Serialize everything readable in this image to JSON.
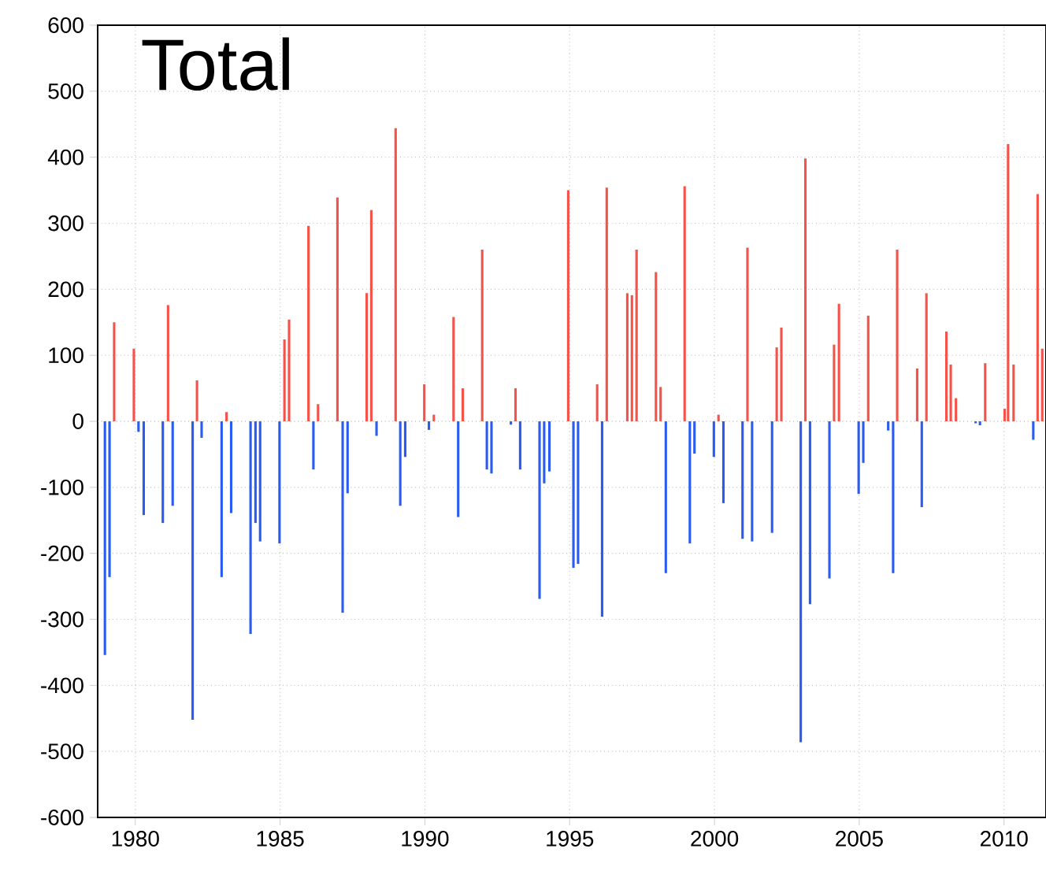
{
  "chart_data": {
    "type": "bar",
    "title": "Total",
    "x": [
      1978.95,
      1979.11,
      1979.27,
      1979.95,
      1980.11,
      1980.29,
      1980.95,
      1981.13,
      1981.29,
      1981.98,
      1982.13,
      1982.29,
      1982.98,
      1983.15,
      1983.31,
      1983.98,
      1984.15,
      1984.31,
      1984.98,
      1985.15,
      1985.31,
      1985.98,
      1986.15,
      1986.31,
      1986.98,
      1987.16,
      1987.33,
      1987.99,
      1988.15,
      1988.33,
      1988.99,
      1989.15,
      1989.32,
      1989.98,
      1990.14,
      1990.31,
      1990.99,
      1991.15,
      1991.31,
      1991.98,
      1992.14,
      1992.3,
      1992.97,
      1993.13,
      1993.29,
      1993.96,
      1994.12,
      1994.3,
      1994.95,
      1995.13,
      1995.29,
      1995.95,
      1996.12,
      1996.28,
      1996.99,
      1997.15,
      1997.31,
      1997.98,
      1998.14,
      1998.32,
      1998.97,
      1999.15,
      1999.31,
      1999.98,
      2000.14,
      2000.31,
      2000.97,
      2001.14,
      2001.3,
      2001.99,
      2002.15,
      2002.31,
      2002.98,
      2003.14,
      2003.3,
      2003.97,
      2004.13,
      2004.3,
      2004.98,
      2005.14,
      2005.31,
      2006.0,
      2006.17,
      2006.31,
      2007.0,
      2007.16,
      2007.32,
      2008.01,
      2008.16,
      2008.34,
      2009.02,
      2009.17,
      2009.35,
      2010.02,
      2010.14,
      2010.33,
      2011.01,
      2011.16,
      2011.32
    ],
    "values": [
      -354,
      -236,
      150,
      110,
      -16,
      -142,
      -154,
      176,
      -128,
      -452,
      62,
      -25,
      -236,
      14,
      -139,
      -322,
      -154,
      -182,
      -185,
      124,
      154,
      296,
      -73,
      26,
      339,
      -290,
      -109,
      194,
      320,
      -22,
      444,
      -128,
      -54,
      56,
      -13,
      10,
      158,
      -145,
      50,
      260,
      -73,
      -79,
      -5,
      50,
      -73,
      -269,
      -94,
      -76,
      350,
      -222,
      -216,
      56,
      -296,
      354,
      194,
      191,
      260,
      226,
      52,
      -230,
      356,
      -185,
      -49,
      -54,
      10,
      -124,
      -178,
      263,
      -182,
      -169,
      112,
      142,
      -486,
      398,
      -277,
      -238,
      116,
      178,
      -110,
      -63,
      160,
      -14,
      -230,
      260,
      80,
      -130,
      194,
      136,
      86,
      35,
      -3,
      -6,
      88,
      19,
      420,
      86,
      -28,
      344,
      110
    ],
    "colors": [
      "#2b5cf2",
      "#2b5cf2",
      "#f5524a",
      "#f5524a",
      "#2b5cf2",
      "#2b5cf2",
      "#2b5cf2",
      "#f5524a",
      "#2b5cf2",
      "#2b5cf2",
      "#f5524a",
      "#2b5cf2",
      "#2b5cf2",
      "#f5524a",
      "#2b5cf2",
      "#2b5cf2",
      "#2b5cf2",
      "#2b5cf2",
      "#2b5cf2",
      "#f5524a",
      "#f5524a",
      "#f5524a",
      "#2b5cf2",
      "#f5524a",
      "#f5524a",
      "#2b5cf2",
      "#2b5cf2",
      "#f5524a",
      "#f5524a",
      "#2b5cf2",
      "#f5524a",
      "#2b5cf2",
      "#2b5cf2",
      "#f5524a",
      "#2b5cf2",
      "#f5524a",
      "#f5524a",
      "#2b5cf2",
      "#f5524a",
      "#f5524a",
      "#2b5cf2",
      "#2b5cf2",
      "#2b5cf2",
      "#f5524a",
      "#2b5cf2",
      "#2b5cf2",
      "#2b5cf2",
      "#2b5cf2",
      "#f5524a",
      "#2b5cf2",
      "#2b5cf2",
      "#f5524a",
      "#2b5cf2",
      "#f5524a",
      "#f5524a",
      "#f5524a",
      "#f5524a",
      "#f5524a",
      "#f5524a",
      "#2b5cf2",
      "#f5524a",
      "#2b5cf2",
      "#2b5cf2",
      "#2b5cf2",
      "#f5524a",
      "#2b5cf2",
      "#2b5cf2",
      "#f5524a",
      "#2b5cf2",
      "#2b5cf2",
      "#f5524a",
      "#f5524a",
      "#2b5cf2",
      "#f5524a",
      "#2b5cf2",
      "#2b5cf2",
      "#f5524a",
      "#f5524a",
      "#2b5cf2",
      "#2b5cf2",
      "#f5524a",
      "#2b5cf2",
      "#2b5cf2",
      "#f5524a",
      "#f5524a",
      "#2b5cf2",
      "#f5524a",
      "#f5524a",
      "#f5524a",
      "#f5524a",
      "#2b5cf2",
      "#2b5cf2",
      "#f5524a",
      "#f5524a",
      "#f5524a",
      "#f5524a",
      "#2b5cf2",
      "#f5524a",
      "#f5524a"
    ],
    "xlim": [
      1978.7,
      2011.45
    ],
    "ylim": [
      -600,
      600
    ],
    "xticks": [
      1980,
      1985,
      1990,
      1995,
      2000,
      2005,
      2010
    ],
    "yticks": [
      -600,
      -500,
      -400,
      -300,
      -200,
      -100,
      0,
      100,
      200,
      300,
      400,
      500,
      600
    ],
    "grid": true
  }
}
